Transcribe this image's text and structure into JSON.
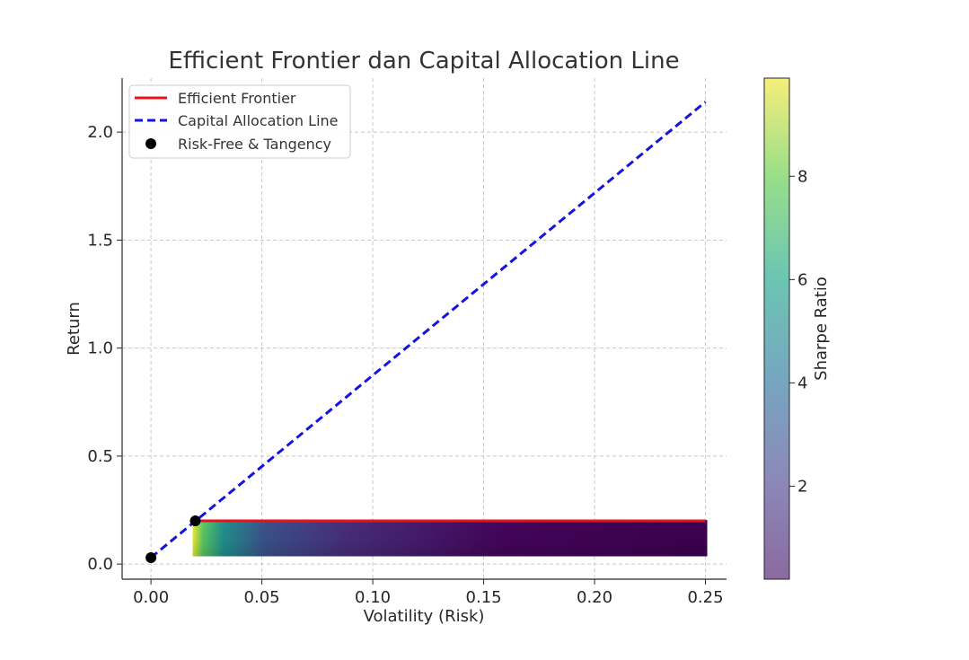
{
  "chart_data": {
    "type": "scatter",
    "title": "Efficient Frontier dan Capital Allocation Line",
    "xlabel": "Volatility (Risk)",
    "ylabel": "Return",
    "xlim": [
      -0.013,
      0.2595
    ],
    "ylim": [
      -0.07,
      2.25
    ],
    "x_ticks": [
      0.0,
      0.05,
      0.1,
      0.15,
      0.2,
      0.25
    ],
    "x_tick_labels": [
      "0.00",
      "0.05",
      "0.10",
      "0.15",
      "0.20",
      "0.25"
    ],
    "y_ticks": [
      0.0,
      0.5,
      1.0,
      1.5,
      2.0
    ],
    "y_tick_labels": [
      "0.0",
      "0.5",
      "1.0",
      "1.5",
      "2.0"
    ],
    "grid": true,
    "legend_position": "top-left",
    "series": [
      {
        "name": "Efficient Frontier",
        "kind": "line",
        "color": "#e8131c",
        "style": "solid",
        "x": [
          0.02,
          0.25
        ],
        "y": [
          0.2,
          0.2
        ]
      },
      {
        "name": "Capital Allocation Line",
        "kind": "line",
        "color": "#1414e0",
        "style": "dashed",
        "x": [
          0.0,
          0.25
        ],
        "y": [
          0.03,
          2.14
        ]
      },
      {
        "name": "Risk-Free & Tangency",
        "kind": "points",
        "color": "#000000",
        "x": [
          0.0,
          0.02
        ],
        "y": [
          0.03,
          0.2
        ]
      }
    ],
    "portfolio_cloud": {
      "x_range": [
        0.02,
        0.25
      ],
      "y_range": [
        0.04,
        0.2
      ],
      "colormap": "viridis",
      "risk_free_rate": 0.03,
      "sharpe_range": [
        0.2,
        9.9
      ]
    },
    "colorbar": {
      "label": "Sharpe Ratio",
      "range": [
        0.2,
        9.9
      ],
      "ticks": [
        2,
        4,
        6,
        8
      ],
      "tick_labels": [
        "2",
        "4",
        "6",
        "8"
      ],
      "colormap": "viridis"
    }
  }
}
